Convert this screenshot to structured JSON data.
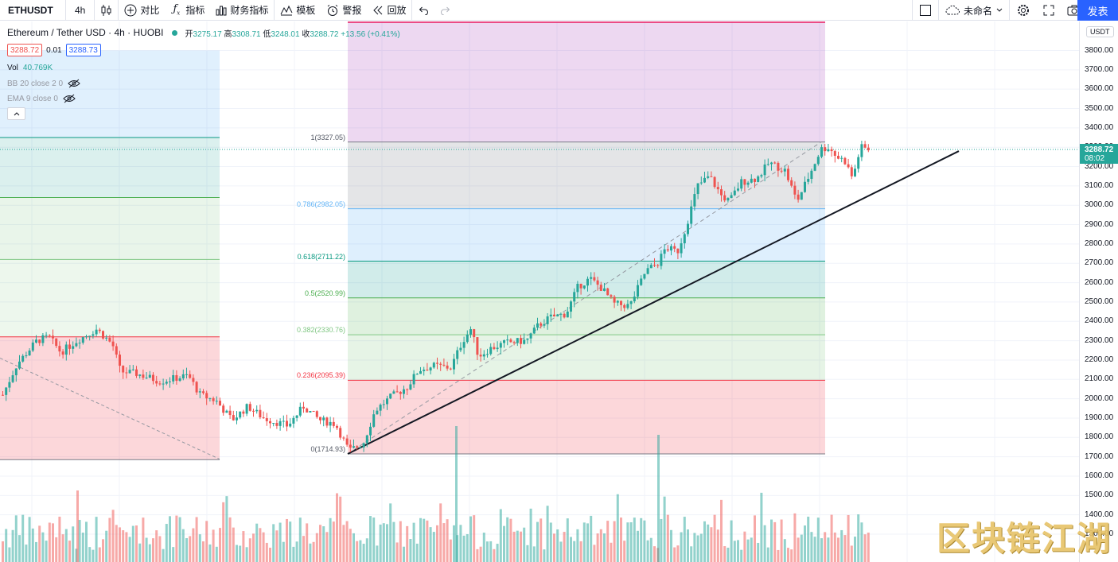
{
  "toolbar": {
    "symbol": "ETHUSDT",
    "interval": "4h",
    "compare": "对比",
    "indicators": "指标",
    "financials": "财务指标",
    "templates": "模板",
    "alerts": "警报",
    "replay": "回放",
    "layout_name": "未命名",
    "publish": "发表"
  },
  "legend": {
    "title": "Ethereum / Tether USD · 4h · HUOBI",
    "open_label": "开",
    "open": "3275.17",
    "high_label": "高",
    "high": "3308.71",
    "low_label": "低",
    "low": "3248.01",
    "close_label": "收",
    "close": "3288.72",
    "change": "+13.56 (+0.41%)",
    "bid": "3288.72",
    "spread": "0.01",
    "ask": "3288.73",
    "vol_label": "Vol",
    "vol_value": "40.769K",
    "bb": "BB 20 close 2 0",
    "ema": "EMA 9 close 0"
  },
  "axis": {
    "currency": "USDT",
    "ticks": [
      "3800.00",
      "3700.00",
      "3600.00",
      "3500.00",
      "3400.00",
      "3300.00",
      "3200.00",
      "3100.00",
      "3000.00",
      "2900.00",
      "2800.00",
      "2700.00",
      "2600.00",
      "2500.00",
      "2400.00",
      "2300.00",
      "2200.00",
      "2100.00",
      "2000.00",
      "1900.00",
      "1800.00",
      "1700.00",
      "1600.00",
      "1500.00",
      "1400.00",
      "1300.00"
    ],
    "last_price": "3288.72",
    "countdown": "08:02"
  },
  "fib": [
    {
      "label": "1(3327.05)",
      "level": 3327.05,
      "color": "#787b86"
    },
    {
      "label": "0.786(2982.05)",
      "level": 2982.05,
      "color": "#64b5f6"
    },
    {
      "label": "0.618(2711.22)",
      "level": 2711.22,
      "color": "#089981"
    },
    {
      "label": "0.5(2520.99)",
      "level": 2520.99,
      "color": "#4caf50"
    },
    {
      "label": "0.382(2330.76)",
      "level": 2330.76,
      "color": "#81c784"
    },
    {
      "label": "0.236(2095.39)",
      "level": 2095.39,
      "color": "#f23645"
    },
    {
      "label": "0(1714.93)",
      "level": 1714.93,
      "color": "#787b86"
    }
  ],
  "colors": {
    "up": "#26a69a",
    "down": "#ef5350",
    "accent": "#2962ff"
  },
  "watermark": "区块链江湖"
}
